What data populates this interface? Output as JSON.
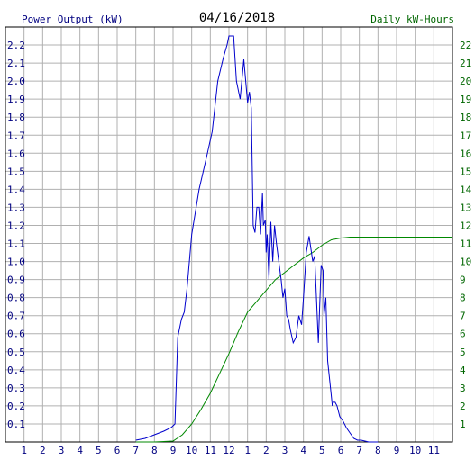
{
  "chart_data": {
    "type": "line",
    "title": "04/16/2018",
    "left_axis_label": "Power Output (kW)",
    "right_axis_label": "Daily kW-Hours",
    "x_tick_labels": [
      "1",
      "2",
      "3",
      "4",
      "5",
      "6",
      "7",
      "8",
      "9",
      "10",
      "11",
      "12",
      "1",
      "2",
      "3",
      "4",
      "5",
      "6",
      "7",
      "8",
      "9",
      "10",
      "11"
    ],
    "x_range_hours": [
      0,
      24
    ],
    "y_left_range": [
      0,
      2.3
    ],
    "y_left_ticks": [
      "0.1",
      "0.2",
      "0.3",
      "0.4",
      "0.5",
      "0.6",
      "0.7",
      "0.8",
      "0.9",
      "1.0",
      "1.1",
      "1.2",
      "1.3",
      "1.4",
      "1.5",
      "1.6",
      "1.7",
      "1.8",
      "1.9",
      "2.0",
      "2.1",
      "2.2"
    ],
    "y_right_range": [
      0,
      23
    ],
    "y_right_ticks": [
      "1",
      "2",
      "3",
      "4",
      "5",
      "6",
      "7",
      "8",
      "9",
      "10",
      "11",
      "12",
      "13",
      "14",
      "15",
      "16",
      "17",
      "18",
      "19",
      "20",
      "21",
      "22"
    ],
    "grid": true,
    "colors": {
      "power": "#0000cc",
      "energy": "#008800",
      "left_axis_text": "#000080",
      "right_axis_text": "#006600",
      "grid": "#b0b0b0",
      "title": "#000000"
    },
    "series": [
      {
        "axis": "left",
        "x": [
          7.0,
          7.5,
          8.0,
          8.5,
          8.9,
          9.1,
          9.25,
          9.45,
          9.6,
          9.75,
          10.0,
          10.4,
          10.8,
          11.1,
          11.4,
          11.7,
          11.9,
          12.0,
          12.25,
          12.4,
          12.6,
          12.8,
          13.0,
          13.1,
          13.2,
          13.3,
          13.4,
          13.5,
          13.6,
          13.7,
          13.8,
          13.85,
          13.95,
          14.0,
          14.05,
          14.15,
          14.25,
          14.35,
          14.45,
          14.55,
          14.7,
          14.8,
          14.9,
          15.0,
          15.1,
          15.2,
          15.3,
          15.45,
          15.6,
          15.75,
          15.9,
          16.0,
          16.15,
          16.3,
          16.5,
          16.6,
          16.8,
          16.95,
          17.05,
          17.1,
          17.2,
          17.3,
          17.4,
          17.5,
          17.55,
          17.6,
          17.7,
          17.8,
          17.95,
          18.1,
          18.3,
          18.5,
          18.7,
          18.9,
          19.1,
          19.3,
          19.5,
          19.8,
          20.0
        ],
        "y": [
          0.01,
          0.02,
          0.04,
          0.06,
          0.08,
          0.1,
          0.58,
          0.68,
          0.72,
          0.85,
          1.15,
          1.4,
          1.58,
          1.72,
          2.0,
          2.13,
          2.2,
          2.25,
          2.25,
          2.0,
          1.9,
          2.12,
          1.88,
          1.94,
          1.85,
          1.2,
          1.16,
          1.3,
          1.3,
          1.15,
          1.38,
          1.2,
          1.23,
          1.05,
          1.15,
          0.9,
          1.22,
          1.0,
          1.2,
          1.1,
          0.98,
          0.9,
          0.8,
          0.85,
          0.7,
          0.68,
          0.62,
          0.55,
          0.58,
          0.7,
          0.65,
          0.8,
          1.05,
          1.14,
          1.0,
          1.03,
          0.55,
          0.98,
          0.95,
          0.7,
          0.8,
          0.45,
          0.35,
          0.25,
          0.2,
          0.22,
          0.22,
          0.2,
          0.14,
          0.12,
          0.08,
          0.05,
          0.02,
          0.01,
          0.01,
          0.005,
          0.0,
          0.0,
          0.0
        ]
      },
      {
        "axis": "right",
        "x": [
          7.0,
          8.0,
          9.0,
          9.5,
          10.0,
          10.5,
          11.0,
          11.5,
          12.0,
          12.5,
          13.0,
          13.5,
          14.0,
          14.5,
          15.0,
          15.5,
          16.0,
          16.5,
          17.0,
          17.5,
          18.0,
          18.5,
          19.0,
          20.0,
          22.0,
          24.0
        ],
        "y": [
          0.0,
          0.0,
          0.05,
          0.4,
          1.0,
          1.8,
          2.7,
          3.8,
          4.9,
          6.1,
          7.2,
          7.8,
          8.4,
          9.0,
          9.4,
          9.8,
          10.2,
          10.5,
          10.9,
          11.2,
          11.3,
          11.35,
          11.35,
          11.35,
          11.35,
          11.35
        ]
      }
    ]
  }
}
